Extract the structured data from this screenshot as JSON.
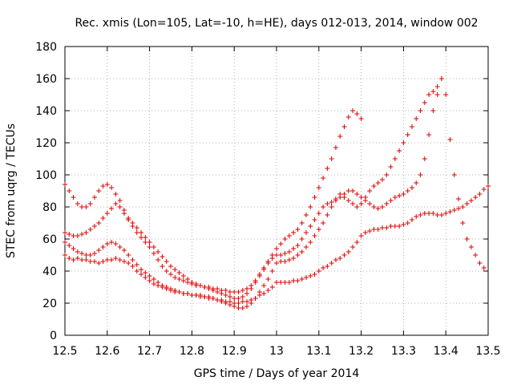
{
  "chart_data": {
    "type": "scatter",
    "title": "Rec. xmis (Lon=105, Lat=-10, h=HE), days 012-013, 2014, window 002",
    "xlabel": "GPS time / Days of year 2014",
    "ylabel": "STEC from uqrg / TECUs",
    "xlim": [
      12.5,
      13.5
    ],
    "ylim": [
      0,
      180
    ],
    "xticks": [
      "12.5",
      "12.6",
      "12.7",
      "12.8",
      "12.9",
      "13",
      "13.1",
      "13.2",
      "13.3",
      "13.4",
      "13.5"
    ],
    "yticks": [
      "0",
      "20",
      "40",
      "60",
      "80",
      "100",
      "120",
      "140",
      "160",
      "180"
    ],
    "grid": true,
    "marker": "+",
    "marker_color": "#e00000",
    "series": [
      {
        "name": "",
        "x": [
          12.5,
          12.51,
          12.52,
          12.53,
          12.54,
          12.55,
          12.56,
          12.57,
          12.58,
          12.59,
          12.6,
          12.61,
          12.62,
          12.63,
          12.64,
          12.65,
          12.66,
          12.67,
          12.68,
          12.69,
          12.7,
          12.71,
          12.72,
          12.73,
          12.74,
          12.75,
          12.76,
          12.77,
          12.78,
          12.79,
          12.8,
          12.81,
          12.82,
          12.83,
          12.84,
          12.85,
          12.86,
          12.87,
          12.88,
          12.89,
          12.9,
          12.91,
          12.92,
          12.93,
          12.94,
          12.95,
          12.96,
          12.97,
          12.98,
          12.99,
          13.0,
          13.01,
          13.02,
          13.03,
          13.04,
          13.05,
          13.06,
          13.07,
          13.08,
          13.09,
          13.1,
          13.11,
          13.12,
          13.13,
          13.14,
          13.15,
          13.16,
          13.17,
          13.18,
          13.19,
          13.2,
          13.21,
          13.22,
          13.23,
          13.24,
          13.25,
          13.26,
          13.27,
          13.28,
          13.29,
          13.3,
          13.31,
          13.32,
          13.33,
          13.34,
          13.35,
          13.36,
          13.37,
          13.38,
          13.39,
          13.4,
          13.41,
          13.42,
          13.43,
          13.44,
          13.45,
          13.46,
          13.47,
          13.48,
          13.49,
          13.5
        ],
        "values": [
          50,
          48,
          47,
          48,
          47,
          47,
          46,
          46,
          45,
          46,
          47,
          47,
          48,
          47,
          46,
          45,
          43,
          40,
          38,
          36,
          34,
          32,
          31,
          30,
          29,
          28,
          27,
          27,
          26,
          26,
          25,
          25,
          25,
          24,
          24,
          23,
          22,
          22,
          21,
          21,
          20,
          20,
          21,
          21,
          22,
          23,
          25,
          26,
          28,
          30,
          33,
          33,
          33,
          33,
          34,
          34,
          35,
          36,
          37,
          38,
          40,
          42,
          43,
          45,
          47,
          48,
          50,
          52,
          55,
          58,
          62,
          64,
          65,
          66,
          66,
          67,
          67,
          68,
          68,
          68,
          69,
          70,
          72,
          74,
          75,
          76,
          76,
          76,
          75,
          75,
          76,
          77,
          78,
          79,
          80,
          82,
          84,
          86,
          88,
          91,
          93
        ]
      },
      {
        "name": "",
        "x": [
          12.5,
          12.51,
          12.52,
          12.53,
          12.54,
          12.55,
          12.56,
          12.57,
          12.58,
          12.59,
          12.6,
          12.61,
          12.62,
          12.63,
          12.64,
          12.65,
          12.66,
          12.67,
          12.68,
          12.69,
          12.7,
          12.71,
          12.72,
          12.73,
          12.74,
          12.75,
          12.76,
          12.77,
          12.78,
          12.79,
          12.8,
          12.81,
          12.82,
          12.83,
          12.84,
          12.85,
          12.86,
          12.87,
          12.88,
          12.89,
          12.9,
          12.91,
          12.92,
          12.93,
          12.94,
          12.95,
          12.96,
          12.97,
          12.98,
          12.99,
          13.0,
          13.01,
          13.02,
          13.03,
          13.04,
          13.05,
          13.06,
          13.07,
          13.08,
          13.09,
          13.1,
          13.11,
          13.12,
          13.13,
          13.14,
          13.15,
          13.16,
          13.17,
          13.18,
          13.19,
          13.2,
          13.21,
          13.22,
          13.23,
          13.24,
          13.25,
          13.26,
          13.27,
          13.28,
          13.29,
          13.3,
          13.31,
          13.32,
          13.33,
          13.34,
          13.35,
          13.36,
          13.37,
          13.38,
          13.39
        ],
        "values": [
          58,
          56,
          54,
          52,
          51,
          50,
          50,
          51,
          53,
          55,
          57,
          58,
          57,
          55,
          53,
          50,
          47,
          44,
          41,
          39,
          37,
          35,
          33,
          31,
          30,
          29,
          28,
          27,
          26,
          26,
          25,
          25,
          24,
          24,
          23,
          23,
          22,
          21,
          20,
          19,
          18,
          17,
          17,
          18,
          20,
          23,
          27,
          31,
          35,
          40,
          45,
          46,
          46,
          47,
          48,
          50,
          52,
          55,
          58,
          62,
          66,
          70,
          75,
          80,
          85,
          88,
          86,
          84,
          82,
          80,
          82,
          86,
          90,
          93,
          95,
          97,
          100,
          105,
          110,
          115,
          120,
          125,
          130,
          135,
          140,
          145,
          150,
          152,
          155,
          160
        ]
      },
      {
        "name": "",
        "x": [
          12.5,
          12.51,
          12.52,
          12.53,
          12.54,
          12.55,
          12.56,
          12.57,
          12.58,
          12.59,
          12.6,
          12.61,
          12.62,
          12.63,
          12.64,
          12.65,
          12.66,
          12.67,
          12.68,
          12.69,
          12.7,
          12.71,
          12.72,
          12.73,
          12.74,
          12.75,
          12.76,
          12.77,
          12.78,
          12.79,
          12.8,
          12.81,
          12.82,
          12.83,
          12.84,
          12.85,
          12.86,
          12.87,
          12.88,
          12.89,
          12.9,
          12.91,
          12.92,
          12.93,
          12.94,
          12.95,
          12.96,
          12.97,
          12.98,
          12.99,
          13.0,
          13.01,
          13.02,
          13.03,
          13.04,
          13.05,
          13.06,
          13.07,
          13.08,
          13.09,
          13.1,
          13.11,
          13.12,
          13.13,
          13.14,
          13.15,
          13.16,
          13.17,
          13.18,
          13.19,
          13.2
        ],
        "values": [
          64,
          63,
          62,
          62,
          63,
          64,
          66,
          68,
          70,
          73,
          76,
          79,
          82,
          80,
          76,
          72,
          68,
          64,
          61,
          58,
          55,
          51,
          47,
          43,
          40,
          38,
          36,
          35,
          34,
          33,
          32,
          31,
          31,
          30,
          30,
          29,
          29,
          28,
          28,
          27,
          27,
          27,
          28,
          29,
          31,
          34,
          38,
          42,
          46,
          50,
          54,
          57,
          60,
          62,
          64,
          66,
          70,
          75,
          80,
          86,
          92,
          98,
          104,
          110,
          117,
          124,
          130,
          136,
          140,
          138,
          135
        ]
      },
      {
        "name": "",
        "x": [
          12.5,
          12.51,
          12.52,
          12.53,
          12.54,
          12.55,
          12.56,
          12.57,
          12.58,
          12.59,
          12.6,
          12.61,
          12.62,
          12.63,
          12.64,
          12.65,
          12.66,
          12.67,
          12.68,
          12.69,
          12.7,
          12.71,
          12.72,
          12.73,
          12.74,
          12.75,
          12.76,
          12.77,
          12.78,
          12.79,
          12.8,
          12.81,
          12.82,
          12.83,
          12.84,
          12.85,
          12.86,
          12.87,
          12.88,
          12.89,
          12.9,
          12.91,
          12.92,
          12.93,
          12.94,
          12.95,
          12.96,
          12.97,
          12.98,
          12.99,
          13.0,
          13.01,
          13.02,
          13.03,
          13.04,
          13.05,
          13.06,
          13.07,
          13.08,
          13.09,
          13.1,
          13.11,
          13.12,
          13.13,
          13.14,
          13.15,
          13.16,
          13.17,
          13.18,
          13.19,
          13.2,
          13.21,
          13.22,
          13.23,
          13.24,
          13.25,
          13.26,
          13.27,
          13.28,
          13.29,
          13.3,
          13.31,
          13.32,
          13.33,
          13.34,
          13.35,
          13.36,
          13.37,
          13.38,
          13.39,
          13.4,
          13.41,
          13.42,
          13.43,
          13.44,
          13.45,
          13.46,
          13.47,
          13.48,
          13.49
        ],
        "values": [
          94,
          90,
          86,
          82,
          80,
          80,
          82,
          86,
          90,
          93,
          94,
          92,
          88,
          84,
          78,
          73,
          70,
          67,
          64,
          61,
          58,
          55,
          52,
          49,
          46,
          43,
          41,
          39,
          37,
          35,
          33,
          32,
          31,
          30,
          29,
          28,
          27,
          26,
          25,
          24,
          23,
          23,
          24,
          26,
          29,
          33,
          37,
          41,
          45,
          48,
          50,
          50,
          51,
          52,
          54,
          56,
          60,
          64,
          68,
          72,
          76,
          80,
          82,
          83,
          84,
          86,
          88,
          90,
          90,
          88,
          86,
          84,
          82,
          80,
          79,
          80,
          82,
          84,
          86,
          87,
          88,
          90,
          92,
          95,
          100,
          110,
          125,
          140,
          150,
          160,
          150,
          122,
          100,
          85,
          70,
          60,
          55,
          50,
          45,
          42
        ]
      }
    ]
  }
}
